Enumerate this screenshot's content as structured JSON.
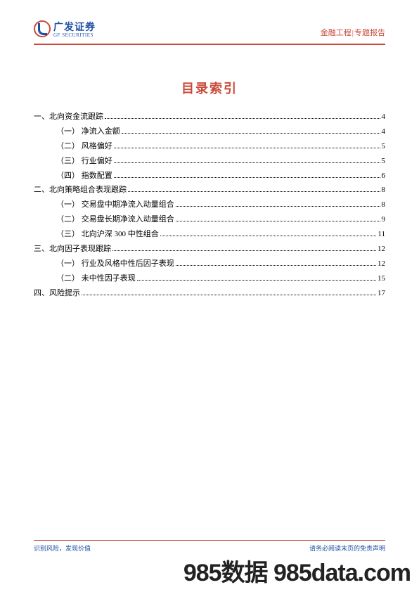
{
  "header": {
    "logo_cn": "广发证券",
    "logo_en": "GF SECURITIES",
    "right_left": "金融工程",
    "right_right": "专题报告"
  },
  "title": "目录索引",
  "toc": [
    {
      "level": 1,
      "label": "一、北向资金流跟踪",
      "page": "4"
    },
    {
      "level": 2,
      "label": "（一） 净流入金额",
      "page": "4"
    },
    {
      "level": 2,
      "label": "（二） 风格偏好",
      "page": "5"
    },
    {
      "level": 2,
      "label": "（三） 行业偏好",
      "page": "5"
    },
    {
      "level": 2,
      "label": "（四） 指数配置",
      "page": "6"
    },
    {
      "level": 1,
      "label": "二、北向策略组合表现跟踪",
      "page": "8"
    },
    {
      "level": 2,
      "label": "（一） 交易盘中期净流入动量组合",
      "page": "8"
    },
    {
      "level": 2,
      "label": "（二） 交易盘长期净流入动量组合",
      "page": "9"
    },
    {
      "level": 2,
      "label": "（三） 北向沪深 300 中性组合",
      "page": "11"
    },
    {
      "level": 1,
      "label": "三、北向因子表现跟踪",
      "page": "12"
    },
    {
      "level": 2,
      "label": "（一） 行业及风格中性后因子表现",
      "page": "12"
    },
    {
      "level": 2,
      "label": "（二） 未中性因子表现",
      "page": "15"
    },
    {
      "level": 1,
      "label": "四、风险提示",
      "page": "17"
    }
  ],
  "footer": {
    "left": "识别风险，发现价值",
    "right": "请务必阅读末页的免责声明"
  },
  "watermark": "985数据 985data.com",
  "colors": {
    "brand_red": "#c94a3b",
    "brand_blue": "#1e4fa3",
    "text": "#000000",
    "background": "#ffffff"
  }
}
